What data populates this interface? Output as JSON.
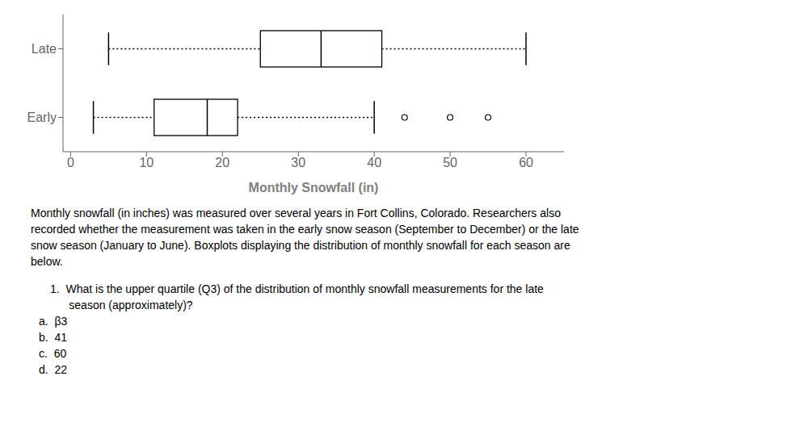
{
  "chart_data": {
    "type": "boxplot",
    "orientation": "horizontal",
    "xlabel": "Monthly Snowfall (in)",
    "categories": [
      "Early",
      "Late"
    ],
    "boxes": [
      {
        "whisker_low": 3,
        "q1": 11,
        "median": 18,
        "q3": 22,
        "whisker_high": 40,
        "outliers": [
          44,
          50,
          55
        ]
      },
      {
        "whisker_low": 5,
        "q1": 25,
        "median": 33,
        "q3": 41,
        "whisker_high": 60,
        "outliers": []
      }
    ],
    "xlim": [
      -1,
      65
    ],
    "xticks": [
      0,
      10,
      20,
      30,
      40,
      50,
      60
    ],
    "color": "black",
    "line_style": "dotted",
    "annotations": [
      "Monthly snowfall (in inches) was measured over several years in Fort Collins, Colorado. Researchers also",
      "recorded whether the measurement was taken in the early snow season (September to December) or the late",
      "snow season (January to June). Boxplots displaying the distribution of monthly snowfall for each season are",
      "below.",
      "1.  What is the upper quartile (Q3) of the distribution of monthly snowfall measurements for the late",
      "      season (approximately)?",
      "a.  β3",
      "b.  41",
      "c.  60",
      "d.  22"
    ]
  }
}
